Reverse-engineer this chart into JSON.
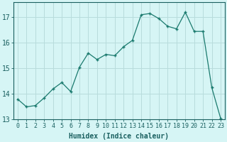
{
  "x": [
    0,
    1,
    2,
    3,
    4,
    5,
    6,
    7,
    8,
    9,
    10,
    11,
    12,
    13,
    14,
    15,
    16,
    17,
    18,
    19,
    20,
    21,
    22,
    23
  ],
  "y": [
    13.8,
    13.5,
    13.55,
    13.85,
    14.2,
    14.45,
    14.1,
    15.05,
    15.6,
    15.35,
    15.55,
    15.5,
    15.85,
    16.1,
    17.1,
    17.15,
    16.95,
    16.65,
    16.55,
    17.2,
    16.45,
    16.45,
    14.25,
    13.05
  ],
  "title": "",
  "xlabel": "Humidex (Indice chaleur)",
  "ylabel": "",
  "ylim": [
    13.0,
    17.6
  ],
  "xlim": [
    -0.5,
    23.5
  ],
  "bg_color": "#d6f5f5",
  "grid_color": "#b8dcdc",
  "line_color": "#1a7a6e",
  "marker_color": "#1a7a6e",
  "font_color": "#1a6060",
  "yticks": [
    13,
    14,
    15,
    16,
    17
  ],
  "xticks": [
    0,
    1,
    2,
    3,
    4,
    5,
    6,
    7,
    8,
    9,
    10,
    11,
    12,
    13,
    14,
    15,
    16,
    17,
    18,
    19,
    20,
    21,
    22,
    23
  ],
  "tick_fontsize": 6.0,
  "xlabel_fontsize": 7.0,
  "ytick_fontsize": 7.0
}
